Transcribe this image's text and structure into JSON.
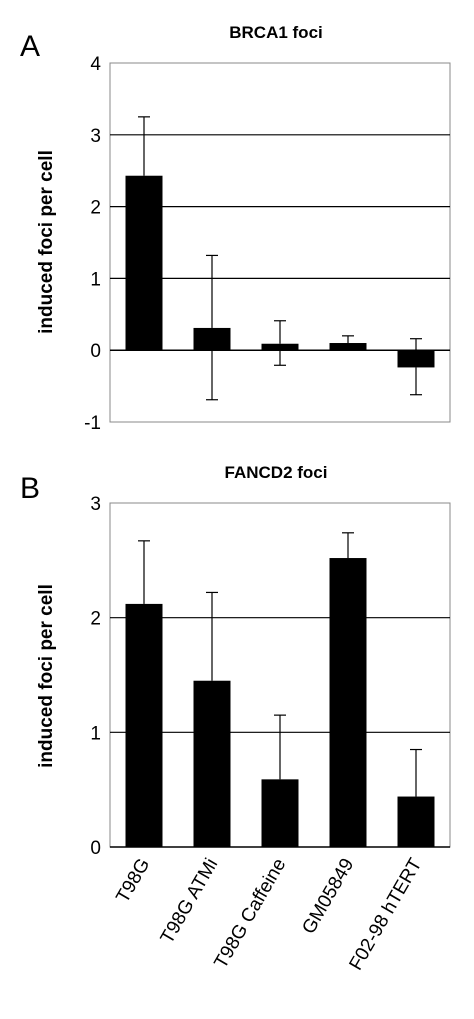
{
  "chart_data": [
    {
      "type": "bar",
      "panel_label": "A",
      "title": "BRCA1 foci",
      "ylabel": "induced foci per cell",
      "xlabel": "",
      "categories": [
        "T98G",
        "T98G ATMi",
        "T98G Caffeine",
        "GM05849",
        "F02-98 hTERT"
      ],
      "values": [
        2.43,
        0.31,
        0.09,
        0.1,
        -0.24
      ],
      "error_upper": [
        3.25,
        1.32,
        0.41,
        0.2,
        0.16
      ],
      "error_lower": [
        null,
        -0.69,
        -0.21,
        null,
        -0.62
      ],
      "ylim": [
        -1,
        4
      ],
      "yticks": [
        "4",
        "3",
        "2",
        "1",
        "0",
        "-1"
      ],
      "grid": true,
      "bar_color": "#000000"
    },
    {
      "type": "bar",
      "panel_label": "B",
      "title": "FANCD2 foci",
      "ylabel": "induced foci per cell",
      "xlabel": "",
      "categories": [
        "T98G",
        "T98G ATMi",
        "T98G Caffeine",
        "GM05849",
        "F02-98 hTERT"
      ],
      "values": [
        2.12,
        1.45,
        0.59,
        2.52,
        0.44
      ],
      "error_upper": [
        2.67,
        2.22,
        1.15,
        2.74,
        0.85
      ],
      "error_lower": [
        null,
        null,
        null,
        null,
        null
      ],
      "ylim": [
        0,
        3
      ],
      "yticks": [
        "3",
        "2",
        "1",
        "0"
      ],
      "grid": true,
      "bar_color": "#000000"
    }
  ]
}
